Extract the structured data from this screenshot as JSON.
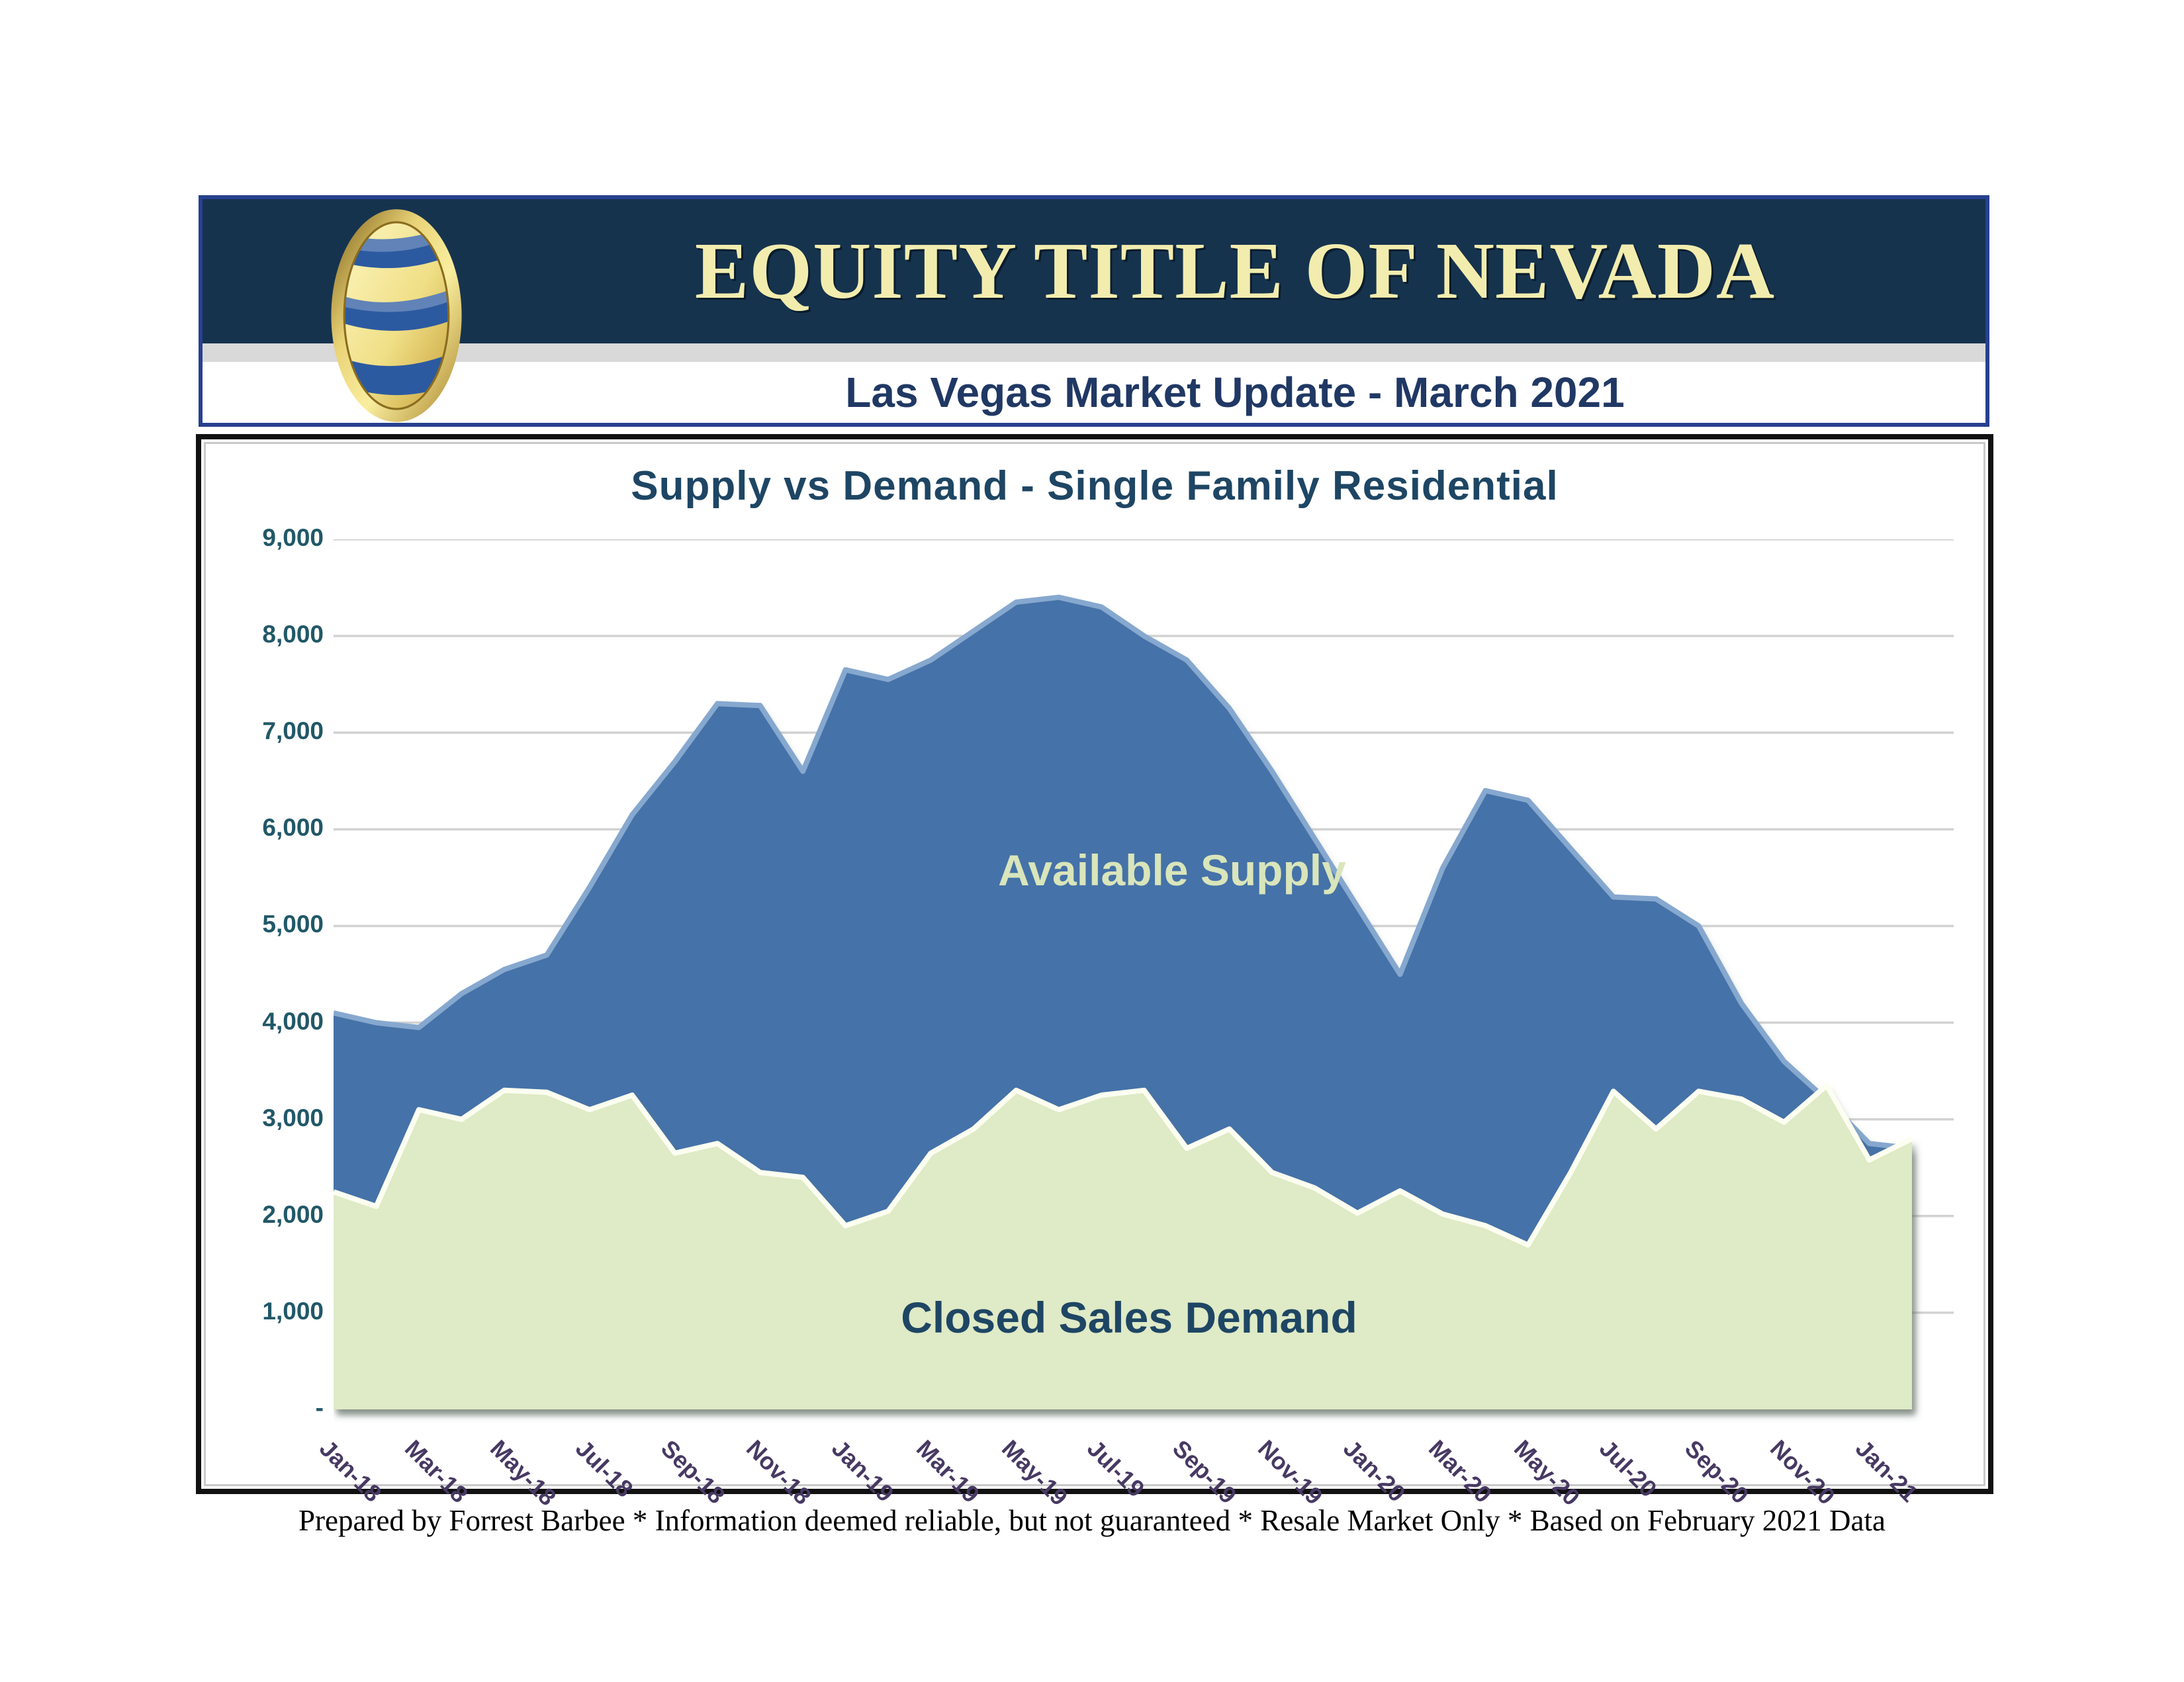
{
  "header": {
    "company": "EQUITY TITLE OF NEVADA",
    "subtitle": "Las Vegas Market Update - March 2021",
    "navy_color": "#16334e",
    "title_color": "#f2edae",
    "logo_icon": "equity-title-gold-ellipse-logo"
  },
  "footer": {
    "text": "Prepared by Forrest Barbee * Information deemed reliable, but not guaranteed * Resale Market Only * Based on February 2021 Data"
  },
  "chart_data": {
    "type": "area",
    "title": "Supply vs Demand - Single Family Residential",
    "xlabel": "",
    "ylabel": "",
    "ylim": [
      0,
      9000
    ],
    "grid": "horizontal",
    "legend": "labels-inside-areas",
    "x": [
      "Jan-18",
      "Feb-18",
      "Mar-18",
      "Apr-18",
      "May-18",
      "Jun-18",
      "Jul-18",
      "Aug-18",
      "Sep-18",
      "Oct-18",
      "Nov-18",
      "Dec-18",
      "Jan-19",
      "Feb-19",
      "Mar-19",
      "Apr-19",
      "May-19",
      "Jun-19",
      "Jul-19",
      "Aug-19",
      "Sep-19",
      "Oct-19",
      "Nov-19",
      "Dec-19",
      "Jan-20",
      "Feb-20",
      "Mar-20",
      "Apr-20",
      "May-20",
      "Jun-20",
      "Jul-20",
      "Aug-20",
      "Sep-20",
      "Oct-20",
      "Nov-20",
      "Dec-20",
      "Jan-21",
      "Feb-21"
    ],
    "x_tick_labels": [
      "Jan-18",
      "Mar-18",
      "May-18",
      "Jul-18",
      "Sep-18",
      "Nov-18",
      "Jan-19",
      "Mar-19",
      "May-19",
      "Jul-19",
      "Sep-19",
      "Nov-19",
      "Jan-20",
      "Mar-20",
      "May-20",
      "Jul-20",
      "Sep-20",
      "Nov-20",
      "Jan-21"
    ],
    "y_ticks": [
      {
        "value": 9000,
        "label": "9,000"
      },
      {
        "value": 8000,
        "label": "8,000"
      },
      {
        "value": 7000,
        "label": "7,000"
      },
      {
        "value": 6000,
        "label": "6,000"
      },
      {
        "value": 5000,
        "label": "5,000"
      },
      {
        "value": 4000,
        "label": "4,000"
      },
      {
        "value": 3000,
        "label": "3,000"
      },
      {
        "value": 2000,
        "label": "2,000"
      },
      {
        "value": 1000,
        "label": "1,000"
      },
      {
        "value": 0,
        "label": "-"
      }
    ],
    "series": [
      {
        "name": "Available Supply",
        "color": "#4472a8",
        "edge_color": "#86a8cf",
        "values": [
          4100,
          4000,
          3950,
          4300,
          4550,
          4700,
          5400,
          6150,
          6700,
          7300,
          7280,
          6600,
          7650,
          7550,
          7750,
          8050,
          8350,
          8400,
          8300,
          8000,
          7750,
          7250,
          6600,
          5900,
          5200,
          4500,
          5600,
          6400,
          6300,
          5800,
          5300,
          5280,
          5000,
          4200,
          3600,
          3200,
          2750,
          2700
        ]
      },
      {
        "name": "Closed Sales Demand",
        "color": "#dfeac6",
        "edge_color": "#fbfef0",
        "values": [
          2250,
          2100,
          3100,
          3000,
          3300,
          3280,
          3100,
          3250,
          2650,
          2750,
          2450,
          2400,
          1900,
          2050,
          2650,
          2900,
          3300,
          3100,
          3250,
          3300,
          2700,
          2900,
          2450,
          2290,
          2030,
          2260,
          2020,
          1900,
          1700,
          2450,
          3290,
          2900,
          3290,
          3210,
          2970,
          3350,
          2580,
          2800
        ]
      }
    ]
  }
}
